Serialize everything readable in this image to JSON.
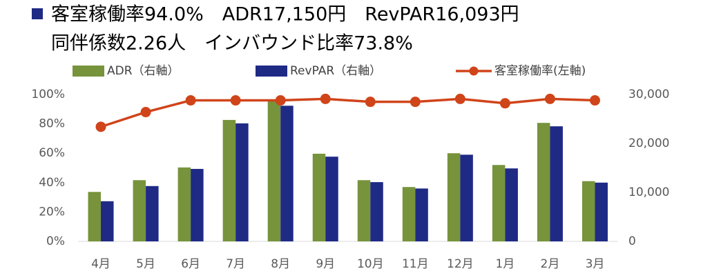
{
  "chart_data": {
    "type": "bar_line",
    "title_lines": [
      "客室稼働率94.0%　ADR17,150円　RevPAR16,093円",
      "同伴係数2.26人　インバウンド比率73.8%"
    ],
    "categories": [
      "4月",
      "5月",
      "6月",
      "7月",
      "8月",
      "9月",
      "10月",
      "11月",
      "12月",
      "1月",
      "2月",
      "3月"
    ],
    "series": [
      {
        "name": "ADR（右軸）",
        "type": "bar",
        "axis": "y2",
        "color": "#77933c",
        "values": [
          10100,
          12500,
          15100,
          24800,
          28700,
          17900,
          12500,
          11100,
          18000,
          15600,
          24200,
          12300
        ]
      },
      {
        "name": "RevPAR（右軸）",
        "type": "bar",
        "axis": "y2",
        "color": "#1f2a85",
        "values": [
          8200,
          11300,
          14800,
          24100,
          27700,
          17300,
          12100,
          10800,
          17700,
          14900,
          23500,
          12000
        ]
      },
      {
        "name": "客室稼働率(左軸)",
        "type": "line",
        "axis": "y",
        "color": "#d0441a",
        "values": [
          78,
          88,
          96,
          96,
          96,
          97,
          95,
          95,
          97,
          94,
          97,
          96
        ]
      }
    ],
    "ylim": [
      0,
      100
    ],
    "yticks": [
      {
        "value": 0,
        "label": "0%"
      },
      {
        "value": 20,
        "label": "20%"
      },
      {
        "value": 40,
        "label": "40%"
      },
      {
        "value": 60,
        "label": "60%"
      },
      {
        "value": 80,
        "label": "80%"
      },
      {
        "value": 100,
        "label": "100%"
      }
    ],
    "y2lim": [
      0,
      30000
    ],
    "y2ticks": [
      0,
      {
        "value": 10000,
        "label": "10,000"
      },
      {
        "value": 20000,
        "label": "20,000"
      },
      {
        "value": 30000,
        "label": "30,000"
      }
    ]
  }
}
